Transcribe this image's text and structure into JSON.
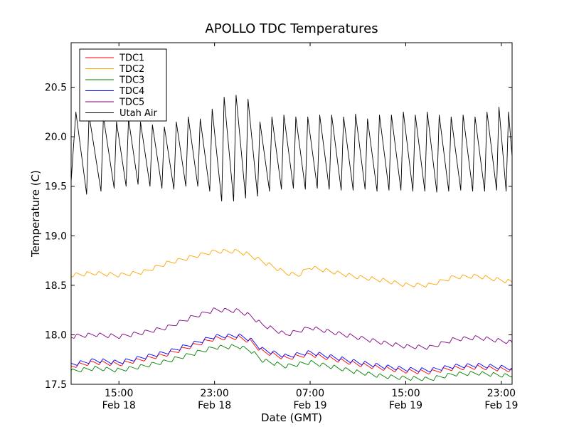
{
  "chart_data": {
    "type": "line",
    "title": "APOLLO TDC Temperatures",
    "xlabel": "Date (GMT)",
    "ylabel": "Temperature (C)",
    "x_unit": "hours since Feb 18 00:00 GMT",
    "xlim": [
      11.0,
      47.9
    ],
    "ylim": [
      17.5,
      20.95
    ],
    "grid": false,
    "legend_position": "top-left",
    "x_ticks": [
      {
        "value": 15,
        "time": "15:00",
        "date": "Feb 18"
      },
      {
        "value": 23,
        "time": "23:00",
        "date": "Feb 18"
      },
      {
        "value": 31,
        "time": "07:00",
        "date": "Feb 19"
      },
      {
        "value": 39,
        "time": "15:00",
        "date": "Feb 19"
      },
      {
        "value": 47,
        "time": "23:00",
        "date": "Feb 19"
      }
    ],
    "y_ticks": [
      "17.5",
      "18.0",
      "18.5",
      "19.0",
      "19.5",
      "20.0",
      "20.5"
    ],
    "series": [
      {
        "name": "TDC1",
        "color": "#ff0000",
        "x": [
          11.0,
          13,
          15,
          17,
          19,
          21,
          23,
          25,
          26,
          27,
          29,
          31,
          33,
          35,
          37,
          39,
          41,
          43,
          45,
          47.9
        ],
        "values": [
          17.68,
          17.72,
          17.7,
          17.75,
          17.8,
          17.88,
          17.96,
          17.97,
          17.93,
          17.83,
          17.76,
          17.8,
          17.75,
          17.7,
          17.66,
          17.63,
          17.62,
          17.66,
          17.67,
          17.64
        ]
      },
      {
        "name": "TDC2",
        "color": "#ffa500",
        "x": [
          11.0,
          13,
          15,
          17,
          19,
          21,
          23,
          25,
          26,
          27,
          29,
          30,
          31,
          33,
          35,
          37,
          39,
          41,
          43,
          45,
          47.9
        ],
        "values": [
          18.6,
          18.62,
          18.6,
          18.63,
          18.72,
          18.78,
          18.84,
          18.84,
          18.8,
          18.74,
          18.62,
          18.6,
          18.68,
          18.63,
          18.58,
          18.55,
          18.5,
          18.5,
          18.58,
          18.59,
          18.53
        ]
      },
      {
        "name": "TDC3",
        "color": "#008000",
        "x": [
          11.0,
          13,
          15,
          17,
          19,
          21,
          23,
          25,
          26,
          27,
          29,
          31,
          33,
          35,
          37,
          39,
          41,
          43,
          45,
          47.9
        ],
        "values": [
          17.63,
          17.66,
          17.64,
          17.68,
          17.73,
          17.8,
          17.87,
          17.88,
          17.84,
          17.74,
          17.68,
          17.72,
          17.67,
          17.62,
          17.58,
          17.56,
          17.55,
          17.6,
          17.61,
          17.58
        ]
      },
      {
        "name": "TDC4",
        "color": "#0000ff",
        "x": [
          11.0,
          13,
          15,
          17,
          19,
          21,
          23,
          25,
          26,
          27,
          29,
          31,
          33,
          35,
          37,
          39,
          41,
          43,
          45,
          47.9
        ],
        "values": [
          17.7,
          17.74,
          17.72,
          17.77,
          17.82,
          17.9,
          17.98,
          17.99,
          17.95,
          17.85,
          17.78,
          17.82,
          17.77,
          17.72,
          17.68,
          17.65,
          17.64,
          17.68,
          17.69,
          17.66
        ]
      },
      {
        "name": "TDC5",
        "color": "#800080",
        "x": [
          11.0,
          13,
          15,
          17,
          19,
          21,
          23,
          25,
          26,
          27,
          29,
          31,
          33,
          35,
          37,
          39,
          41,
          43,
          45,
          47.9
        ],
        "values": [
          17.98,
          18.0,
          17.98,
          18.02,
          18.07,
          18.17,
          18.25,
          18.24,
          18.19,
          18.1,
          18.0,
          18.07,
          18.02,
          17.97,
          17.92,
          17.88,
          17.87,
          17.95,
          17.97,
          17.92
        ]
      },
      {
        "name": "Utah Air",
        "color": "#000000",
        "x": [
          11.0,
          11.4,
          12.3,
          12.5,
          13.5,
          13.7,
          14.6,
          14.8,
          15.6,
          15.8,
          16.6,
          16.8,
          17.6,
          17.8,
          18.6,
          18.8,
          19.6,
          19.8,
          20.6,
          20.8,
          21.6,
          21.8,
          22.6,
          22.8,
          23.6,
          23.8,
          24.6,
          24.8,
          25.6,
          25.8,
          26.6,
          26.8,
          27.6,
          27.8,
          28.6,
          28.8,
          29.6,
          29.8,
          30.6,
          30.8,
          31.6,
          31.8,
          32.6,
          32.8,
          33.6,
          33.8,
          34.6,
          34.8,
          35.6,
          35.8,
          36.6,
          36.8,
          37.6,
          37.8,
          38.6,
          38.8,
          39.6,
          39.8,
          40.6,
          40.8,
          41.6,
          41.8,
          42.6,
          42.8,
          43.6,
          43.8,
          44.6,
          44.8,
          45.6,
          45.8,
          46.6,
          46.8,
          47.4,
          47.6,
          47.9
        ],
        "values": [
          19.55,
          20.25,
          19.42,
          20.22,
          19.45,
          20.2,
          19.48,
          20.15,
          19.5,
          20.18,
          19.52,
          20.15,
          19.5,
          20.12,
          19.48,
          20.1,
          19.47,
          20.15,
          19.5,
          20.2,
          19.5,
          20.18,
          19.45,
          20.28,
          19.35,
          20.4,
          19.35,
          20.42,
          19.38,
          20.38,
          19.4,
          20.15,
          19.45,
          20.2,
          19.47,
          20.22,
          19.48,
          20.2,
          19.47,
          20.2,
          19.48,
          20.22,
          19.47,
          20.22,
          19.46,
          20.2,
          19.46,
          20.23,
          19.47,
          20.18,
          19.45,
          20.22,
          19.46,
          20.22,
          19.46,
          20.25,
          19.45,
          20.22,
          19.45,
          20.25,
          19.44,
          20.22,
          19.45,
          20.2,
          19.46,
          20.22,
          19.45,
          20.2,
          19.45,
          20.25,
          19.46,
          20.3,
          19.45,
          20.25,
          19.8
        ]
      }
    ]
  }
}
